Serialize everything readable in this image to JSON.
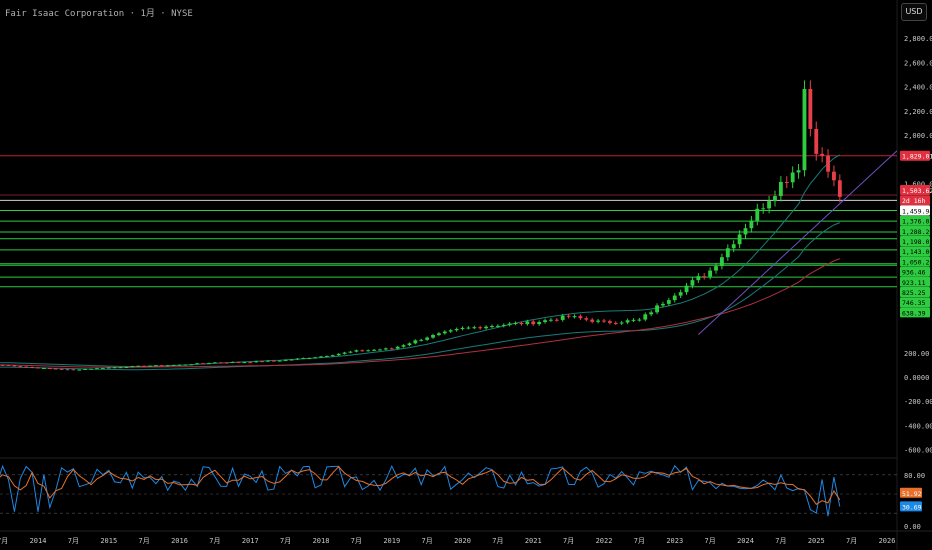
{
  "header": {
    "title": "Fair Isaac Corporation · 1月 · NYSE",
    "currency_button": "USD"
  },
  "chart_data": {
    "type": "candlestick",
    "price_axis": {
      "ticks": [
        "2,800.00",
        "2,600.00",
        "2,400.00",
        "2,200.00",
        "2,000.00",
        "1,600.00",
        "200.00",
        "0.0000",
        "-200.00",
        "-400.00",
        "-600.00"
      ],
      "values": [
        2800,
        2600,
        2400,
        2200,
        2000,
        1600,
        200,
        0,
        -200,
        -400,
        -600
      ]
    },
    "time_axis": {
      "labels": [
        "7月",
        "2014",
        "7月",
        "2015",
        "7月",
        "2016",
        "7月",
        "2017",
        "7月",
        "2018",
        "7月",
        "2019",
        "7月",
        "2020",
        "7月",
        "2021",
        "7月",
        "2022",
        "7月",
        "2023",
        "7月",
        "2024",
        "7月",
        "2025",
        "7月",
        "2026"
      ]
    },
    "horizontal_levels": [
      {
        "label": "1,829.01",
        "value": 1829.01,
        "color": "#e03040",
        "line": "#c02030"
      },
      {
        "label": "1,503.62",
        "value": 1503.62,
        "color": "#e03040",
        "line": "#7a2030"
      },
      {
        "label": "2d 16h",
        "value": 1460,
        "color": "#e03040",
        "line": null
      },
      {
        "label": "1,459.98",
        "value": 1459.98,
        "color": "#ffffff",
        "line": "#d0d0d0"
      },
      {
        "label": "1,376.02",
        "value": 1376.02,
        "color": "#2ecc40",
        "line": "#2ecc40"
      },
      {
        "label": "1,288.29",
        "value": 1288.29,
        "color": "#2ecc40",
        "line": "#2ecc40"
      },
      {
        "label": "1,198.03",
        "value": 1198.03,
        "color": "#2ecc40",
        "line": "#2ecc40"
      },
      {
        "label": "1,143.06",
        "value": 1143.06,
        "color": "#2ecc40",
        "line": "#2ecc40"
      },
      {
        "label": "1,050.28",
        "value": 1050.28,
        "color": "#2ecc40",
        "line": "#2ecc40"
      },
      {
        "label": "936.46",
        "value": 936.46,
        "color": "#2ecc40",
        "line": "#2ecc40"
      },
      {
        "label": "923.11",
        "value": 923.11,
        "color": "#2ecc40",
        "line": "#2ecc40"
      },
      {
        "label": "825.25",
        "value": 825.25,
        "color": "#2ecc40",
        "line": "#2ecc40"
      },
      {
        "label": "746.35",
        "value": 746.35,
        "color": "#2ecc40",
        "line": "#2ecc40"
      },
      {
        "label": "638.39",
        "value": 638.39,
        "color": "#2ecc40",
        "line": null
      }
    ],
    "monthly_close_approx": [
      {
        "date": "2013-07",
        "close": 100
      },
      {
        "date": "2014-01",
        "close": 75
      },
      {
        "date": "2014-07",
        "close": 60
      },
      {
        "date": "2015-01",
        "close": 78
      },
      {
        "date": "2015-07",
        "close": 92
      },
      {
        "date": "2016-01",
        "close": 100
      },
      {
        "date": "2016-07",
        "close": 120
      },
      {
        "date": "2017-01",
        "close": 125
      },
      {
        "date": "2017-07",
        "close": 140
      },
      {
        "date": "2018-01",
        "close": 170
      },
      {
        "date": "2018-07",
        "close": 215
      },
      {
        "date": "2019-01",
        "close": 235
      },
      {
        "date": "2019-07",
        "close": 330
      },
      {
        "date": "2020-01",
        "close": 400
      },
      {
        "date": "2020-07",
        "close": 430
      },
      {
        "date": "2021-01",
        "close": 450
      },
      {
        "date": "2021-07",
        "close": 500
      },
      {
        "date": "2022-01",
        "close": 450
      },
      {
        "date": "2022-07",
        "close": 470
      },
      {
        "date": "2023-01",
        "close": 690
      },
      {
        "date": "2023-07",
        "close": 880
      },
      {
        "date": "2024-01",
        "close": 1250
      },
      {
        "date": "2024-07",
        "close": 1600
      },
      {
        "date": "2025-01",
        "close": 1900
      },
      {
        "date": "2025-05",
        "close": 1503.62
      }
    ],
    "oscillator": {
      "ticks": [
        "80.00",
        "51.92",
        "30.69",
        "0.00"
      ],
      "tick_values": [
        80,
        51.92,
        30.69,
        0
      ],
      "value_labels": [
        {
          "label": "51.92",
          "value": 51.92,
          "color": "#e8702a"
        },
        {
          "label": "30.69",
          "value": 30.69,
          "color": "#1e88e5"
        }
      ],
      "dashed_levels": [
        80,
        50,
        20
      ]
    },
    "colors": {
      "up": "#2ecc40",
      "down": "#e8404a",
      "ma_red": "#b03040",
      "ma_purple": "#7050c0",
      "bb": "#1a7a7a",
      "k_line": "#1e88e5",
      "d_line": "#e8702a"
    }
  }
}
